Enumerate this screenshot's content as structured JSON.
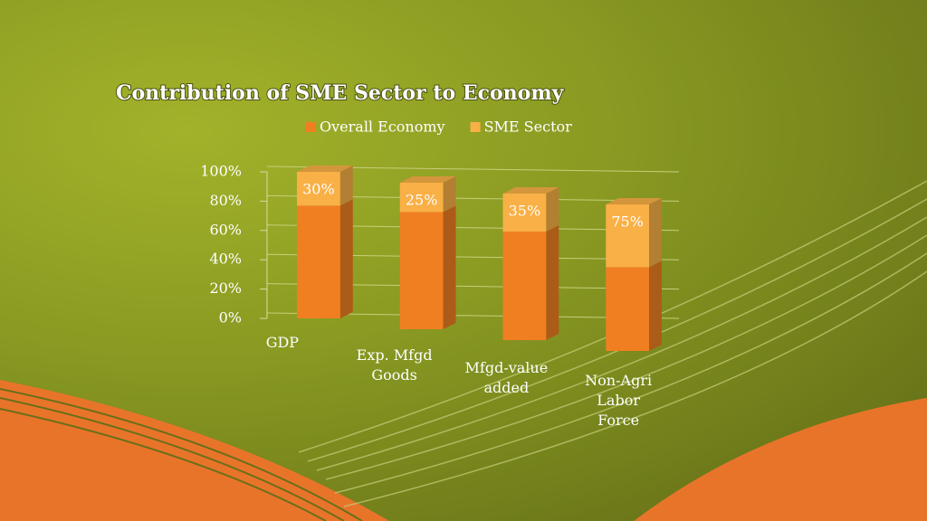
{
  "chart_data": {
    "type": "bar",
    "stacking": "percent",
    "title": "Contribution of SME Sector to Economy",
    "categories": [
      "GDP",
      "Exp. Mfgd Goods",
      "Mfgd-value added",
      "Non-Agri Labor Force"
    ],
    "series": [
      {
        "name": "Overall Economy",
        "color": "#f07f22",
        "values": [
          100,
          100,
          100,
          100
        ]
      },
      {
        "name": "SME Sector",
        "color": "#f9b046",
        "values": [
          30,
          25,
          35,
          75
        ],
        "value_labels": [
          "30%",
          "25%",
          "35%",
          "75%"
        ]
      }
    ],
    "ylim": [
      0,
      100
    ],
    "yticks": [
      {
        "value": 0,
        "label": "0%"
      },
      {
        "value": 20,
        "label": "20%"
      },
      {
        "value": 40,
        "label": "40%"
      },
      {
        "value": 60,
        "label": "60%"
      },
      {
        "value": 80,
        "label": "80%"
      },
      {
        "value": 100,
        "label": "100%"
      }
    ],
    "grid": true,
    "legend": "top"
  }
}
